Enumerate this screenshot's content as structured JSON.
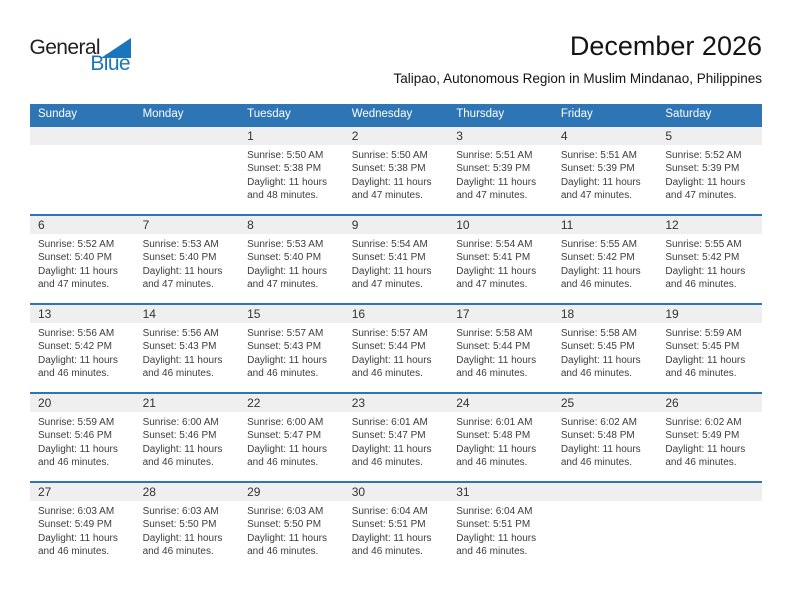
{
  "logo": {
    "text_top": "General",
    "text_bottom": "Blue"
  },
  "page": {
    "title": "December 2026",
    "subtitle": "Talipao, Autonomous Region in Muslim Mindanao, Philippines"
  },
  "colors": {
    "header_blue": "#2E75B6",
    "band_gray": "#EFEFEF",
    "logo_blue": "#1B75BC",
    "text_dark": "#3D3D3D"
  },
  "calendar": {
    "weekdays": [
      "Sunday",
      "Monday",
      "Tuesday",
      "Wednesday",
      "Thursday",
      "Friday",
      "Saturday"
    ],
    "weeks": [
      [
        {
          "day": "",
          "sunrise": "",
          "sunset": "",
          "daylight": ""
        },
        {
          "day": "",
          "sunrise": "",
          "sunset": "",
          "daylight": ""
        },
        {
          "day": "1",
          "sunrise": "Sunrise: 5:50 AM",
          "sunset": "Sunset: 5:38 PM",
          "daylight": "Daylight: 11 hours and 48 minutes."
        },
        {
          "day": "2",
          "sunrise": "Sunrise: 5:50 AM",
          "sunset": "Sunset: 5:38 PM",
          "daylight": "Daylight: 11 hours and 47 minutes."
        },
        {
          "day": "3",
          "sunrise": "Sunrise: 5:51 AM",
          "sunset": "Sunset: 5:39 PM",
          "daylight": "Daylight: 11 hours and 47 minutes."
        },
        {
          "day": "4",
          "sunrise": "Sunrise: 5:51 AM",
          "sunset": "Sunset: 5:39 PM",
          "daylight": "Daylight: 11 hours and 47 minutes."
        },
        {
          "day": "5",
          "sunrise": "Sunrise: 5:52 AM",
          "sunset": "Sunset: 5:39 PM",
          "daylight": "Daylight: 11 hours and 47 minutes."
        }
      ],
      [
        {
          "day": "6",
          "sunrise": "Sunrise: 5:52 AM",
          "sunset": "Sunset: 5:40 PM",
          "daylight": "Daylight: 11 hours and 47 minutes."
        },
        {
          "day": "7",
          "sunrise": "Sunrise: 5:53 AM",
          "sunset": "Sunset: 5:40 PM",
          "daylight": "Daylight: 11 hours and 47 minutes."
        },
        {
          "day": "8",
          "sunrise": "Sunrise: 5:53 AM",
          "sunset": "Sunset: 5:40 PM",
          "daylight": "Daylight: 11 hours and 47 minutes."
        },
        {
          "day": "9",
          "sunrise": "Sunrise: 5:54 AM",
          "sunset": "Sunset: 5:41 PM",
          "daylight": "Daylight: 11 hours and 47 minutes."
        },
        {
          "day": "10",
          "sunrise": "Sunrise: 5:54 AM",
          "sunset": "Sunset: 5:41 PM",
          "daylight": "Daylight: 11 hours and 47 minutes."
        },
        {
          "day": "11",
          "sunrise": "Sunrise: 5:55 AM",
          "sunset": "Sunset: 5:42 PM",
          "daylight": "Daylight: 11 hours and 46 minutes."
        },
        {
          "day": "12",
          "sunrise": "Sunrise: 5:55 AM",
          "sunset": "Sunset: 5:42 PM",
          "daylight": "Daylight: 11 hours and 46 minutes."
        }
      ],
      [
        {
          "day": "13",
          "sunrise": "Sunrise: 5:56 AM",
          "sunset": "Sunset: 5:42 PM",
          "daylight": "Daylight: 11 hours and 46 minutes."
        },
        {
          "day": "14",
          "sunrise": "Sunrise: 5:56 AM",
          "sunset": "Sunset: 5:43 PM",
          "daylight": "Daylight: 11 hours and 46 minutes."
        },
        {
          "day": "15",
          "sunrise": "Sunrise: 5:57 AM",
          "sunset": "Sunset: 5:43 PM",
          "daylight": "Daylight: 11 hours and 46 minutes."
        },
        {
          "day": "16",
          "sunrise": "Sunrise: 5:57 AM",
          "sunset": "Sunset: 5:44 PM",
          "daylight": "Daylight: 11 hours and 46 minutes."
        },
        {
          "day": "17",
          "sunrise": "Sunrise: 5:58 AM",
          "sunset": "Sunset: 5:44 PM",
          "daylight": "Daylight: 11 hours and 46 minutes."
        },
        {
          "day": "18",
          "sunrise": "Sunrise: 5:58 AM",
          "sunset": "Sunset: 5:45 PM",
          "daylight": "Daylight: 11 hours and 46 minutes."
        },
        {
          "day": "19",
          "sunrise": "Sunrise: 5:59 AM",
          "sunset": "Sunset: 5:45 PM",
          "daylight": "Daylight: 11 hours and 46 minutes."
        }
      ],
      [
        {
          "day": "20",
          "sunrise": "Sunrise: 5:59 AM",
          "sunset": "Sunset: 5:46 PM",
          "daylight": "Daylight: 11 hours and 46 minutes."
        },
        {
          "day": "21",
          "sunrise": "Sunrise: 6:00 AM",
          "sunset": "Sunset: 5:46 PM",
          "daylight": "Daylight: 11 hours and 46 minutes."
        },
        {
          "day": "22",
          "sunrise": "Sunrise: 6:00 AM",
          "sunset": "Sunset: 5:47 PM",
          "daylight": "Daylight: 11 hours and 46 minutes."
        },
        {
          "day": "23",
          "sunrise": "Sunrise: 6:01 AM",
          "sunset": "Sunset: 5:47 PM",
          "daylight": "Daylight: 11 hours and 46 minutes."
        },
        {
          "day": "24",
          "sunrise": "Sunrise: 6:01 AM",
          "sunset": "Sunset: 5:48 PM",
          "daylight": "Daylight: 11 hours and 46 minutes."
        },
        {
          "day": "25",
          "sunrise": "Sunrise: 6:02 AM",
          "sunset": "Sunset: 5:48 PM",
          "daylight": "Daylight: 11 hours and 46 minutes."
        },
        {
          "day": "26",
          "sunrise": "Sunrise: 6:02 AM",
          "sunset": "Sunset: 5:49 PM",
          "daylight": "Daylight: 11 hours and 46 minutes."
        }
      ],
      [
        {
          "day": "27",
          "sunrise": "Sunrise: 6:03 AM",
          "sunset": "Sunset: 5:49 PM",
          "daylight": "Daylight: 11 hours and 46 minutes."
        },
        {
          "day": "28",
          "sunrise": "Sunrise: 6:03 AM",
          "sunset": "Sunset: 5:50 PM",
          "daylight": "Daylight: 11 hours and 46 minutes."
        },
        {
          "day": "29",
          "sunrise": "Sunrise: 6:03 AM",
          "sunset": "Sunset: 5:50 PM",
          "daylight": "Daylight: 11 hours and 46 minutes."
        },
        {
          "day": "30",
          "sunrise": "Sunrise: 6:04 AM",
          "sunset": "Sunset: 5:51 PM",
          "daylight": "Daylight: 11 hours and 46 minutes."
        },
        {
          "day": "31",
          "sunrise": "Sunrise: 6:04 AM",
          "sunset": "Sunset: 5:51 PM",
          "daylight": "Daylight: 11 hours and 46 minutes."
        },
        {
          "day": "",
          "sunrise": "",
          "sunset": "",
          "daylight": ""
        },
        {
          "day": "",
          "sunrise": "",
          "sunset": "",
          "daylight": ""
        }
      ]
    ]
  }
}
